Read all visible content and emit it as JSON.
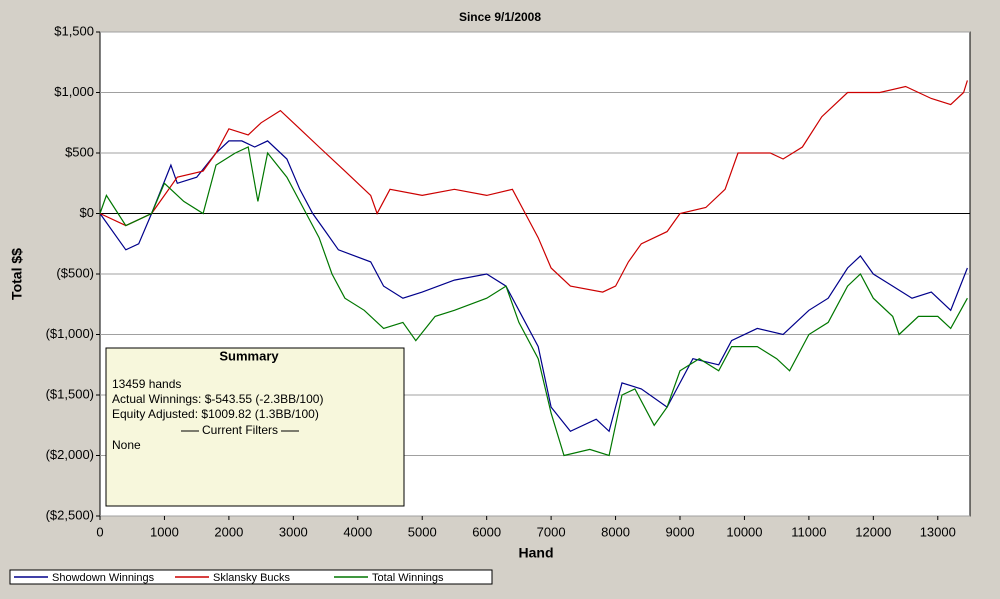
{
  "chart_data": {
    "type": "line",
    "title": "Since 9/1/2008",
    "x_label": "Hand",
    "y_label": "Total $$",
    "xlim": [
      0,
      13500
    ],
    "ylim": [
      -2500,
      1500
    ],
    "xticks": [
      0,
      1000,
      2000,
      3000,
      4000,
      5000,
      6000,
      7000,
      8000,
      9000,
      10000,
      11000,
      12000,
      13000
    ],
    "yticks": [
      {
        "value": 1500,
        "label": "$1,500"
      },
      {
        "value": 1000,
        "label": "$1,000"
      },
      {
        "value": 500,
        "label": "$500"
      },
      {
        "value": 0,
        "label": "$0"
      },
      {
        "value": -500,
        "label": "($500)"
      },
      {
        "value": -1000,
        "label": "($1,000)"
      },
      {
        "value": -1500,
        "label": "($1,500)"
      },
      {
        "value": -2000,
        "label": "($2,000)"
      },
      {
        "value": -2500,
        "label": "($2,500)"
      }
    ],
    "grid": true,
    "legend": "bottom",
    "series": [
      {
        "name": "Showdown Winnings",
        "color": "#00008b",
        "x": [
          0,
          400,
          600,
          800,
          1100,
          1200,
          1500,
          1800,
          2000,
          2200,
          2400,
          2600,
          2900,
          3100,
          3300,
          3500,
          3700,
          4200,
          4400,
          4700,
          5000,
          5500,
          6000,
          6300,
          6500,
          6800,
          7000,
          7300,
          7700,
          7900,
          8100,
          8400,
          8800,
          9000,
          9200,
          9600,
          9800,
          10200,
          10600,
          11000,
          11300,
          11600,
          11800,
          12000,
          12300,
          12600,
          12900,
          13200,
          13459
        ],
        "values": [
          0,
          -300,
          -250,
          0,
          400,
          250,
          300,
          500,
          600,
          600,
          550,
          600,
          450,
          200,
          0,
          -150,
          -300,
          -400,
          -600,
          -700,
          -650,
          -550,
          -500,
          -600,
          -800,
          -1100,
          -1600,
          -1800,
          -1700,
          -1800,
          -1400,
          -1450,
          -1600,
          -1400,
          -1200,
          -1250,
          -1050,
          -950,
          -1000,
          -800,
          -700,
          -450,
          -350,
          -500,
          -600,
          -700,
          -650,
          -800,
          -450
        ]
      },
      {
        "name": "Sklansky Bucks",
        "color": "#cc0000",
        "x": [
          0,
          400,
          800,
          1200,
          1600,
          1800,
          2000,
          2300,
          2500,
          2800,
          3100,
          3400,
          3800,
          4200,
          4300,
          4500,
          5000,
          5500,
          6000,
          6400,
          6600,
          6800,
          7000,
          7300,
          7800,
          8000,
          8200,
          8400,
          8800,
          9000,
          9400,
          9700,
          9900,
          10400,
          10600,
          10900,
          11200,
          11600,
          12100,
          12500,
          12900,
          13200,
          13400,
          13459
        ],
        "values": [
          0,
          -100,
          0,
          300,
          350,
          500,
          700,
          650,
          750,
          850,
          700,
          550,
          350,
          150,
          0,
          200,
          150,
          200,
          150,
          200,
          0,
          -200,
          -450,
          -600,
          -650,
          -600,
          -400,
          -250,
          -150,
          0,
          50,
          200,
          500,
          500,
          450,
          550,
          800,
          1000,
          1000,
          1050,
          950,
          900,
          1000,
          1100
        ]
      },
      {
        "name": "Total Winnings",
        "color": "#007700",
        "x": [
          0,
          100,
          400,
          800,
          1000,
          1300,
          1600,
          1800,
          2100,
          2300,
          2450,
          2600,
          2900,
          3200,
          3400,
          3600,
          3800,
          4100,
          4400,
          4700,
          4900,
          5200,
          5500,
          6000,
          6300,
          6500,
          6800,
          7000,
          7200,
          7600,
          7900,
          8100,
          8300,
          8600,
          8800,
          9000,
          9300,
          9600,
          9800,
          10200,
          10500,
          10700,
          11000,
          11300,
          11600,
          11800,
          12000,
          12300,
          12400,
          12700,
          13000,
          13200,
          13459
        ],
        "values": [
          0,
          150,
          -100,
          0,
          250,
          100,
          0,
          400,
          500,
          550,
          100,
          500,
          300,
          0,
          -200,
          -500,
          -700,
          -800,
          -950,
          -900,
          -1050,
          -850,
          -800,
          -700,
          -600,
          -900,
          -1200,
          -1650,
          -2000,
          -1950,
          -2000,
          -1500,
          -1450,
          -1750,
          -1600,
          -1300,
          -1200,
          -1300,
          -1100,
          -1100,
          -1200,
          -1300,
          -1000,
          -900,
          -600,
          -500,
          -700,
          -850,
          -1000,
          -850,
          -850,
          -950,
          -700
        ]
      }
    ],
    "summary": {
      "title": "Summary",
      "lines": [
        "13459 hands",
        "Actual Winnings: $-543.55 (-2.3BB/100)",
        "Equity Adjusted: $1009.82 (1.3BB/100)"
      ],
      "filters_title": "Current Filters",
      "filters": "None"
    }
  }
}
